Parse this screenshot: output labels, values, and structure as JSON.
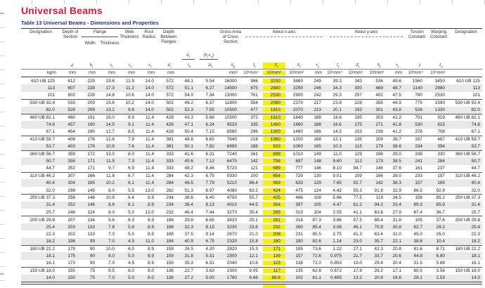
{
  "page": {
    "title": "Universal Beams",
    "subtitle": "Table 13 Universal Beams - Dimensions and Properties"
  },
  "colors": {
    "title_red": "#e31837",
    "subtitle_navy": "#23356b",
    "highlight_yellow": "#f8ef12",
    "row_shade": "#e9e9e9",
    "rule_dark": "#3a3a3a"
  },
  "table": {
    "top_headers": {
      "designation_left": "Designation",
      "depth_of_section": "Depth of Section",
      "flange": "Flange",
      "flange_width": "Width",
      "flange_thickness": "Thickness",
      "web_thickness": "Web Thickness",
      "root_radius": "Root Radius",
      "depth_between_flanges": "Depth Between Flanges",
      "gross_area": "Gross Area of Cross Section",
      "about_x": "About x-axis",
      "about_y": "About y-axis",
      "torsion": "Torsion Constant",
      "warping": "Warping Constant",
      "designation_right": "Designation"
    },
    "fraction_numerators": {
      "d1_over_tw": [
        {
          "b": "d",
          "s": "1"
        }
      ],
      "bf_tw_over_2tf": [
        {
          "b": "(b",
          "s": "f"
        },
        {
          "b": "-t",
          "s": "w"
        },
        {
          "b": ")",
          "s": ""
        }
      ]
    },
    "symbols": [
      null,
      [
        {
          "b": "d",
          "s": ""
        }
      ],
      [
        {
          "b": "b",
          "s": "f"
        }
      ],
      [
        {
          "b": "t",
          "s": "f"
        }
      ],
      [
        {
          "b": "t",
          "s": "w"
        }
      ],
      [
        {
          "b": "r",
          "s": "1"
        }
      ],
      [
        {
          "b": "d",
          "s": "1"
        }
      ],
      [
        {
          "b": "t",
          "s": "w"
        }
      ],
      [
        {
          "b": "2t",
          "s": "f"
        }
      ],
      [
        {
          "b": "A",
          "s": "g"
        }
      ],
      [
        {
          "b": "I",
          "s": "x"
        }
      ],
      [
        {
          "b": "Z",
          "s": "x"
        }
      ],
      [
        {
          "b": "S",
          "s": "x"
        }
      ],
      [
        {
          "b": "r",
          "s": "x"
        }
      ],
      [
        {
          "b": "I",
          "s": "y"
        }
      ],
      [
        {
          "b": "Z",
          "s": "y"
        }
      ],
      [
        {
          "b": "S",
          "s": "y"
        }
      ],
      [
        {
          "b": "r",
          "s": "y"
        }
      ],
      [
        {
          "b": "J",
          "s": ""
        }
      ],
      [
        {
          "b": "I",
          "s": "w"
        }
      ],
      null
    ],
    "units": [
      "kg/m",
      "mm",
      "mm",
      "mm",
      "mm",
      "mm",
      "mm",
      "",
      "",
      "mm²",
      "10⁶mm⁴",
      "10³mm³",
      "10³mm³",
      "mm",
      "10⁶mm⁴",
      "10³mm³",
      "10³mm³",
      "mm",
      "10³mm⁴",
      "10⁹mm⁶",
      ""
    ],
    "highlight_col": 11,
    "group_starts": [
      0,
      3,
      5,
      8,
      10,
      13,
      16,
      19,
      23,
      26
    ],
    "shaded_rows": [
      1,
      4,
      6,
      9,
      11,
      14,
      17,
      20,
      22,
      24,
      27
    ],
    "rows": [
      [
        "610 UB 125",
        "612",
        "229",
        "19.6",
        "11.9",
        "14.0",
        "572",
        "48.1",
        "5.54",
        "16000",
        "986",
        "3230",
        "3680",
        "249",
        "39.3",
        "343",
        "536",
        "49.6",
        "1560",
        "3450",
        "610 UB 125"
      ],
      [
        "113",
        "607",
        "228",
        "17.3",
        "11.2",
        "14.0",
        "572",
        "51.1",
        "6.27",
        "14500",
        "875",
        "2880",
        "3290",
        "246",
        "34.3",
        "300",
        "469",
        "48.7",
        "1140",
        "2980",
        "113"
      ],
      [
        "101",
        "602",
        "228",
        "14.8",
        "10.6",
        "14.0",
        "572",
        "54.0",
        "7.34",
        "13000",
        "761",
        "2530",
        "2900",
        "242",
        "29.3",
        "257",
        "402",
        "47.5",
        "790",
        "2530",
        "101"
      ],
      [
        "530 UB 92.4",
        "533",
        "209",
        "15.6",
        "10.2",
        "14.0",
        "502",
        "49.2",
        "6.37",
        "11800",
        "554",
        "2080",
        "2370",
        "217",
        "23.8",
        "228",
        "355",
        "44.9",
        "775",
        "1590",
        "530 UB 92.4"
      ],
      [
        "82.0",
        "528",
        "209",
        "13.2",
        "9.6",
        "14.0",
        "502",
        "52.3",
        "7.55",
        "10500",
        "477",
        "1810",
        "2070",
        "213",
        "20.1",
        "193",
        "301",
        "43.8",
        "526",
        "1330",
        "82.0"
      ],
      [
        "460 UB 82.1",
        "460",
        "191",
        "16.0",
        "9.9",
        "11.4",
        "428",
        "43.3",
        "5.66",
        "10500",
        "372",
        "1610",
        "1840",
        "188",
        "18.6",
        "195",
        "303",
        "42.2",
        "701",
        "919",
        "460 UB 82.1"
      ],
      [
        "74.6",
        "457",
        "190",
        "14.5",
        "9.1",
        "11.4",
        "428",
        "47.1",
        "6.24",
        "9520",
        "335",
        "1460",
        "1660",
        "188",
        "16.6",
        "175",
        "271",
        "41.8",
        "530",
        "815",
        "74.6"
      ],
      [
        "67.1",
        "454",
        "190",
        "12.7",
        "8.5",
        "11.4",
        "428",
        "50.4",
        "7.15",
        "8580",
        "296",
        "1300",
        "1480",
        "186",
        "14.5",
        "153",
        "238",
        "41.2",
        "378",
        "708",
        "67.1"
      ],
      [
        "410 UB 59.7",
        "406",
        "178",
        "12.8",
        "7.8",
        "11.4",
        "381",
        "48.8",
        "6.65",
        "7640",
        "216",
        "1060",
        "1200",
        "168",
        "12.1",
        "135",
        "209",
        "39.7",
        "337",
        "467",
        "410 UB 59.7"
      ],
      [
        "53.7",
        "403",
        "178",
        "10.9",
        "7.6",
        "11.4",
        "381",
        "50.1",
        "7.82",
        "6890",
        "188",
        "933",
        "1060",
        "165",
        "10.3",
        "115",
        "179",
        "38.6",
        "234",
        "394",
        "53.7"
      ],
      [
        "360 UB 56.7",
        "359",
        "172",
        "13.0",
        "8.0",
        "11.4",
        "333",
        "41.6",
        "6.31",
        "7240",
        "161",
        "899",
        "1010",
        "149",
        "11.0",
        "129",
        "198",
        "39.0",
        "338",
        "330",
        "360 UB 56.7"
      ],
      [
        "50.7",
        "356",
        "171",
        "11.5",
        "7.3",
        "11.4",
        "333",
        "45.6",
        "7.12",
        "6470",
        "142",
        "798",
        "897",
        "148",
        "9.60",
        "112",
        "173",
        "38.5",
        "241",
        "284",
        "50.7"
      ],
      [
        "44.7",
        "352",
        "171",
        "9.7",
        "6.9",
        "11.4",
        "333",
        "48.2",
        "8.46",
        "5720",
        "121",
        "689",
        "777",
        "146",
        "8.10",
        "94.7",
        "146",
        "37.6",
        "161",
        "237",
        "44.7"
      ],
      [
        "310 UB 46.2",
        "307",
        "166",
        "11.8",
        "6.7",
        "11.4",
        "284",
        "42.3",
        "6.75",
        "5930",
        "100",
        "654",
        "729",
        "130",
        "9.01",
        "109",
        "166",
        "39.0",
        "233",
        "197",
        "310 UB 46.2"
      ],
      [
        "40.4",
        "304",
        "165",
        "10.2",
        "6.1",
        "11.4",
        "284",
        "46.5",
        "7.79",
        "5210",
        "86.4",
        "569",
        "633",
        "129",
        "7.65",
        "92.7",
        "142",
        "38.3",
        "157",
        "165",
        "40.4"
      ],
      [
        "32.0",
        "298",
        "149",
        "8.0",
        "5.5",
        "13.0",
        "282",
        "51.3",
        "8.97",
        "4080",
        "63.2",
        "424",
        "475",
        "124",
        "4.42",
        "59.3",
        "91.8",
        "32.9",
        "86.5",
        "92.9",
        "32.0"
      ],
      [
        "250 UB 37.3",
        "256",
        "146",
        "10.9",
        "6.4",
        "8.9",
        "234",
        "36.6",
        "6.40",
        "4750",
        "55.7",
        "435",
        "486",
        "108",
        "5.66",
        "77.5",
        "119",
        "34.5",
        "158",
        "85.2",
        "250 UB 37.3"
      ],
      [
        "31.4",
        "252",
        "146",
        "8.6",
        "6.1",
        "8.9",
        "234",
        "38.4",
        "8.13",
        "4010",
        "44.5",
        "354",
        "397",
        "105",
        "4.47",
        "61.2",
        "94.2",
        "33.4",
        "89.3",
        "65.9",
        "31.4"
      ],
      [
        "25.7",
        "248",
        "124",
        "8.0",
        "5.0",
        "12.0",
        "232",
        "46.4",
        "7.44",
        "3270",
        "35.4",
        "285",
        "319",
        "104",
        "2.55",
        "41.1",
        "63.6",
        "27.9",
        "67.4",
        "36.7",
        "25.7"
      ],
      [
        "200 UB 29.8",
        "207",
        "134",
        "9.6",
        "6.3",
        "8.9",
        "188",
        "29.8",
        "6.65",
        "3820",
        "29.1",
        "281",
        "316",
        "87.3",
        "3.86",
        "57.5",
        "88.4",
        "31.8",
        "105",
        "37.6",
        "200 UB 29.8"
      ],
      [
        "25.4",
        "203",
        "133",
        "7.8",
        "5.8",
        "8.9",
        "188",
        "32.3",
        "8.15",
        "3230",
        "23.6",
        "232",
        "260",
        "85.4",
        "3.06",
        "46.1",
        "70.9",
        "30.8",
        "62.7",
        "29.2",
        "25.4"
      ],
      [
        "22.3",
        "202",
        "133",
        "7.0",
        "5.0",
        "8.9",
        "188",
        "37.5",
        "9.14",
        "2870",
        "21.0",
        "208",
        "231",
        "85.5",
        "2.75",
        "41.3",
        "63.4",
        "31.0",
        "45.0",
        "26.0",
        "22.3"
      ],
      [
        "18.2",
        "198",
        "99",
        "7.0",
        "4.5",
        "11.0",
        "184",
        "40.9",
        "6.75",
        "2320",
        "15.8",
        "160",
        "180",
        "82.6",
        "1.14",
        "23.0",
        "35.7",
        "22.1",
        "38.6",
        "10.4",
        "18.2"
      ],
      [
        "180 UB 22.2",
        "179",
        "90",
        "10.0",
        "6.0",
        "8.9",
        "159",
        "26.5",
        "4.20",
        "2820",
        "15.3",
        "171",
        "195",
        "73.6",
        "1.22",
        "27.1",
        "42.3",
        "20.8",
        "81.6",
        "8.71",
        "180 UB 22.2"
      ],
      [
        "18.1",
        "175",
        "90",
        "8.0",
        "5.0",
        "8.9",
        "159",
        "31.8",
        "5.31",
        "2300",
        "12.1",
        "139",
        "157",
        "72.6",
        "0.975",
        "21.7",
        "33.7",
        "20.6",
        "44.8",
        "6.80",
        "18.1"
      ],
      [
        "16.1",
        "173",
        "90",
        "7.0",
        "4.5",
        "8.9",
        "159",
        "35.3",
        "6.31",
        "2040",
        "10.6",
        "123",
        "138",
        "72.0",
        "0.853",
        "19.0",
        "29.4",
        "20.4",
        "31.5",
        "5.88",
        "16.1"
      ],
      [
        "150 UB 18.0",
        "155",
        "75",
        "9.5",
        "6.0",
        "8.0",
        "136",
        "22.7",
        "3.63",
        "2300",
        "9.05",
        "117",
        "135",
        "62.8",
        "0.672",
        "17.9",
        "28.2",
        "17.1",
        "60.5",
        "3.56",
        "150 UB 18.0"
      ],
      [
        "14.0",
        "150",
        "75",
        "7.0",
        "5.0",
        "8.0",
        "136",
        "27.2",
        "5.00",
        "1780",
        "6.66",
        "88.8",
        "102",
        "61.1",
        "0.495",
        "13.2",
        "20.8",
        "16.6",
        "28.1",
        "2.53",
        "14.0"
      ]
    ]
  }
}
